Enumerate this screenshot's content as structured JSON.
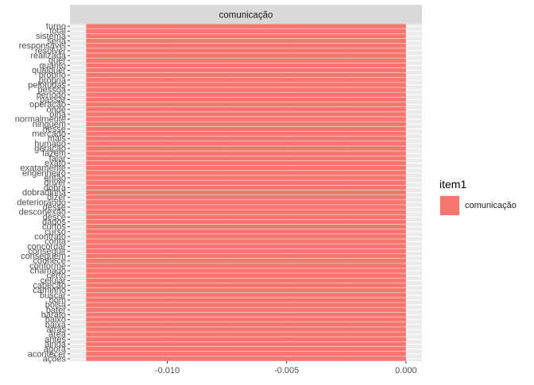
{
  "chart_data": {
    "type": "bar",
    "orientation": "horizontal",
    "facet_title": "comunicação",
    "categories": [
      "turno",
      "total",
      "sistema",
      "seria",
      "responsável",
      "resolver",
      "realizada",
      "quer",
      "quanto",
      "qualquer",
      "próprio",
      "própria",
      "pelotudas",
      "pessoa",
      "período",
      "passar",
      "operação",
      "onde",
      "olha",
      "normalmente",
      "ninguém",
      "nesse",
      "mercado",
      "mais",
      "humano",
      "geração",
      "fazem",
      "falar",
      "exato",
      "exatamente",
      "engenheiro",
      "então",
      "driver",
      "dobra",
      "dobradinha",
      "dizer",
      "deteriorando",
      "desse",
      "desconexão",
      "desce",
      "dados",
      "curtos",
      "curso",
      "contrato",
      "conta",
      "concordar",
      "conseguir",
      "conseguem",
      "conhece",
      "conforme",
      "chamado",
      "certo",
      "celular",
      "cabeção",
      "caminho",
      "buscar",
      "bom",
      "bolsa",
      "bater",
      "barato",
      "baixo",
      "baixa",
      "atrás",
      "área",
      "antes",
      "ainda",
      "agora",
      "acontecer",
      "ações"
    ],
    "values": [
      -0.0134,
      -0.0134,
      -0.0134,
      -0.0134,
      -0.0134,
      -0.0134,
      -0.0134,
      -0.0134,
      -0.0134,
      -0.0134,
      -0.0134,
      -0.0134,
      -0.0134,
      -0.0134,
      -0.0134,
      -0.0134,
      -0.0134,
      -0.0134,
      -0.0134,
      -0.0134,
      -0.0134,
      -0.0134,
      -0.0134,
      -0.0134,
      -0.0134,
      -0.0134,
      -0.0134,
      -0.0134,
      -0.0134,
      -0.0134,
      -0.0134,
      -0.0134,
      -0.0134,
      -0.0134,
      -0.0134,
      -0.0134,
      -0.0134,
      -0.0134,
      -0.0134,
      -0.0134,
      -0.0134,
      -0.0134,
      -0.0134,
      -0.0134,
      -0.0134,
      -0.0134,
      -0.0134,
      -0.0134,
      -0.0134,
      -0.0134,
      -0.0134,
      -0.0134,
      -0.0134,
      -0.0134,
      -0.0134,
      -0.0134,
      -0.0134,
      -0.0134,
      -0.0134,
      -0.0134,
      -0.0134,
      -0.0134,
      -0.0134,
      -0.0134,
      -0.0134,
      -0.0134,
      -0.0134,
      -0.0134,
      -0.0134
    ],
    "xlim": [
      -0.01408,
      0.00067
    ],
    "xticks": [
      -0.01,
      -0.005,
      0
    ],
    "xtick_labels": [
      "-0.010",
      "-0.005",
      "0.000"
    ],
    "xlabel": "",
    "ylabel": "",
    "legend": {
      "title": "item1",
      "entries": [
        "comunicação"
      ],
      "position": "right"
    },
    "colors": {
      "bar": "#f8766d",
      "panel": "#ebebeb",
      "strip": "#d9d9d9",
      "grid": "#ffffff"
    },
    "grid": true
  }
}
